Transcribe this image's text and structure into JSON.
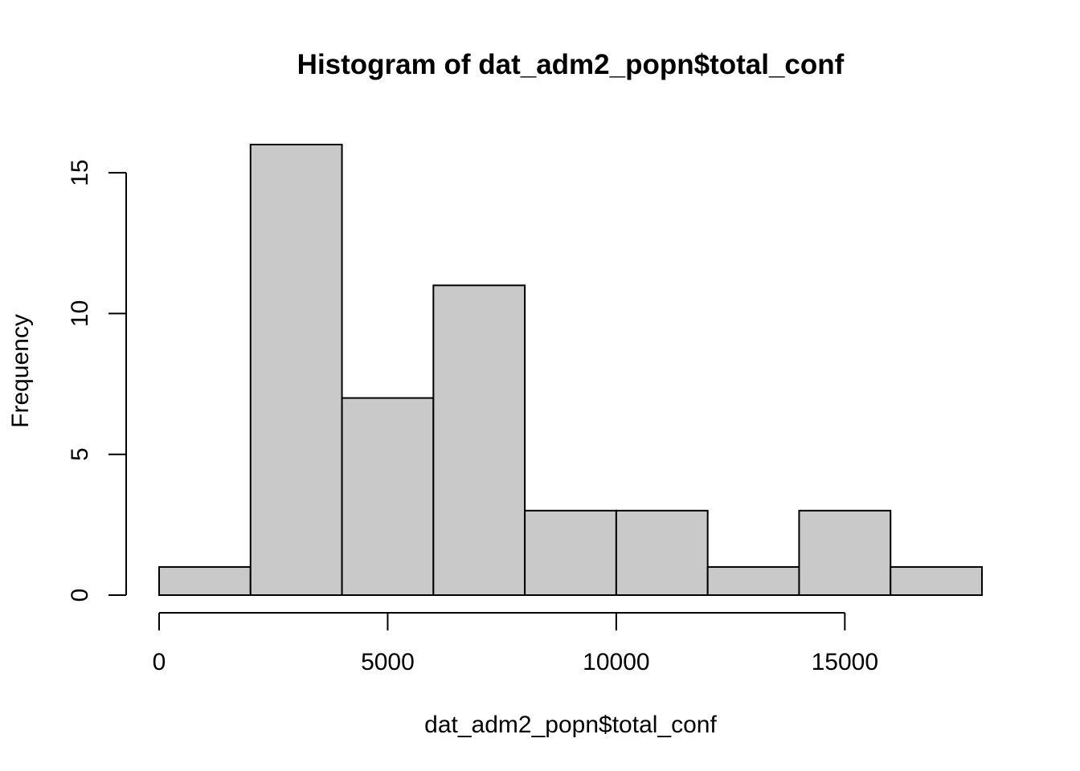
{
  "chart_data": {
    "type": "bar",
    "subtype": "histogram",
    "title": "Histogram of dat_adm2_popn$total_conf",
    "xlabel": "dat_adm2_popn$total_conf",
    "ylabel": "Frequency",
    "bin_edges": [
      0,
      2000,
      4000,
      6000,
      8000,
      10000,
      12000,
      14000,
      16000,
      18000
    ],
    "values": [
      1,
      16,
      7,
      11,
      3,
      3,
      1,
      3,
      1
    ],
    "xticks": [
      0,
      5000,
      10000,
      15000
    ],
    "xtick_labels": [
      "0",
      "5000",
      "10000",
      "15000"
    ],
    "yticks": [
      0,
      5,
      10,
      15
    ],
    "ytick_labels": [
      "0",
      "5",
      "10",
      "15"
    ],
    "xlim": [
      0,
      18000
    ],
    "ylim": [
      0,
      16
    ],
    "bar_color": "#C9C9C9",
    "grid": false,
    "legend": "none"
  }
}
